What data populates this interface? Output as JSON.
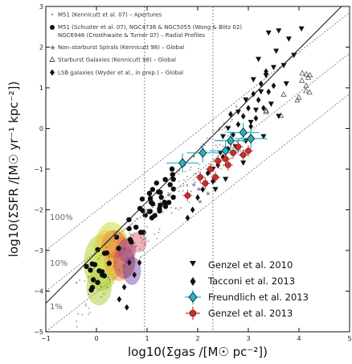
{
  "chart_data": {
    "type": "scatter",
    "xlabel": "log10(Σgas /[M☉ pc⁻²])",
    "ylabel": "log10(ΣSFR /[M☉ yr⁻¹ kpc⁻²])",
    "xlim": [
      -1,
      5
    ],
    "ylim": [
      -5,
      3
    ],
    "x_ticks": [
      "−1",
      "0",
      "1",
      "2",
      "3",
      "4",
      "5"
    ],
    "y_ticks": [
      "−5",
      "−4",
      "−3",
      "−2",
      "−1",
      "0",
      "1",
      "2",
      "3"
    ],
    "efficiency_labels": [
      "100%",
      "10%",
      "1%"
    ],
    "efficiency_lines": [
      {
        "label": "100%",
        "x": [
          -1,
          5
        ],
        "y": [
          -3.0,
          2.85
        ]
      },
      {
        "label": "10%",
        "x": [
          -1,
          5
        ],
        "y": [
          -4.0,
          1.85
        ]
      },
      {
        "label": "1%",
        "x": [
          -1,
          5
        ],
        "y": [
          -5.0,
          0.85
        ]
      }
    ],
    "fit_line": {
      "x": [
        -1,
        5
      ],
      "y": [
        -4.3,
        3.2
      ]
    },
    "vertical_lines_x": [
      0.95,
      2.3
    ],
    "legend_top": [
      "M51 (Kennicutt et al. 07) – Apertures",
      "M51 (Schuster et al. 07), NGC4736 & NGC5055 (Wong & Blitz 02)",
      "NGC6946 (Crosthwaite & Turner 07) – Radial Profiles",
      "Non–starburst Spirals (Kennicutt 98) – Global",
      "Starburst Galaxies (Kennicutt 98) – Global",
      "LSB galaxies (Wyder et al., in prep.) – Global"
    ],
    "legend_bottom": [
      {
        "name": "Genzel et al. 2010",
        "marker": "triangle-down",
        "color": "#111111"
      },
      {
        "name": "Tacconi et al. 2013",
        "marker": "diamond",
        "color": "#111111"
      },
      {
        "name": "Freundlich et al. 2013",
        "marker": "diamond",
        "color": "#22b4c4"
      },
      {
        "name": "Genzel et al. 2013",
        "marker": "circle",
        "color": "#d42a2a"
      }
    ],
    "series": [
      {
        "name": "Genzel et al. 2010",
        "points": [
          [
            3.4,
            2.35
          ],
          [
            3.6,
            2.4
          ],
          [
            4.05,
            2.45
          ],
          [
            3.8,
            2.2
          ],
          [
            3.55,
            1.9
          ],
          [
            3.9,
            1.8
          ],
          [
            3.2,
            1.7
          ],
          [
            3.5,
            1.5
          ],
          [
            3.35,
            1.3
          ],
          [
            3.7,
            1.55
          ],
          [
            3.75,
            1.1
          ],
          [
            3.1,
            1.2
          ],
          [
            3.25,
            0.9
          ],
          [
            2.95,
            0.7
          ],
          [
            3.45,
            0.6
          ],
          [
            3.6,
            0.3
          ],
          [
            2.8,
            0.4
          ],
          [
            3.05,
            0.15
          ],
          [
            2.6,
            0.0
          ],
          [
            3.3,
            -0.2
          ],
          [
            2.75,
            -0.45
          ],
          [
            2.45,
            -0.6
          ],
          [
            2.9,
            -0.85
          ],
          [
            2.3,
            -1.0
          ],
          [
            2.55,
            -1.25
          ],
          [
            2.35,
            -1.5
          ],
          [
            2.5,
            -0.2
          ],
          [
            3.15,
            0.45
          ]
        ]
      },
      {
        "name": "Tacconi et al. 2013",
        "points": [
          [
            3.25,
            1.1
          ],
          [
            3.35,
            1.4
          ],
          [
            3.5,
            1.05
          ],
          [
            3.1,
            0.85
          ],
          [
            3.2,
            0.7
          ],
          [
            3.4,
            0.9
          ],
          [
            3.0,
            0.5
          ],
          [
            2.9,
            0.3
          ],
          [
            3.05,
            0.05
          ],
          [
            2.8,
            0.1
          ],
          [
            2.7,
            -0.15
          ],
          [
            2.95,
            -0.3
          ],
          [
            2.6,
            -0.5
          ],
          [
            2.5,
            -0.7
          ],
          [
            2.4,
            -0.9
          ],
          [
            2.2,
            -1.1
          ],
          [
            2.3,
            -1.3
          ],
          [
            2.1,
            -1.5
          ],
          [
            2.0,
            -1.7
          ],
          [
            1.9,
            -2.0
          ],
          [
            1.8,
            -2.2
          ],
          [
            3.15,
            0.25
          ],
          [
            2.65,
            0.35
          ],
          [
            3.3,
            0.5
          ],
          [
            0.65,
            -3.3
          ],
          [
            0.75,
            -3.6
          ],
          [
            0.55,
            -3.9
          ],
          [
            0.45,
            -4.2
          ],
          [
            0.85,
            -3.3
          ],
          [
            0.6,
            -4.4
          ]
        ]
      },
      {
        "name": "Freundlich et al. 2013",
        "points": [
          [
            2.1,
            -0.6
          ],
          [
            1.7,
            -0.85
          ],
          [
            2.65,
            -0.3
          ],
          [
            2.9,
            -0.1
          ],
          [
            2.55,
            -0.55
          ],
          [
            3.05,
            -0.25
          ]
        ]
      },
      {
        "name": "Genzel et al. 2013",
        "points": [
          [
            1.8,
            -1.65
          ],
          [
            2.05,
            -1.2
          ],
          [
            2.25,
            -1.0
          ],
          [
            2.4,
            -0.8
          ],
          [
            2.55,
            -0.75
          ],
          [
            2.7,
            -0.6
          ],
          [
            2.8,
            -0.45
          ],
          [
            2.9,
            -0.65
          ],
          [
            2.35,
            -1.2
          ],
          [
            2.15,
            -1.35
          ],
          [
            2.6,
            -0.9
          ],
          [
            3.0,
            -0.55
          ]
        ]
      }
    ]
  }
}
